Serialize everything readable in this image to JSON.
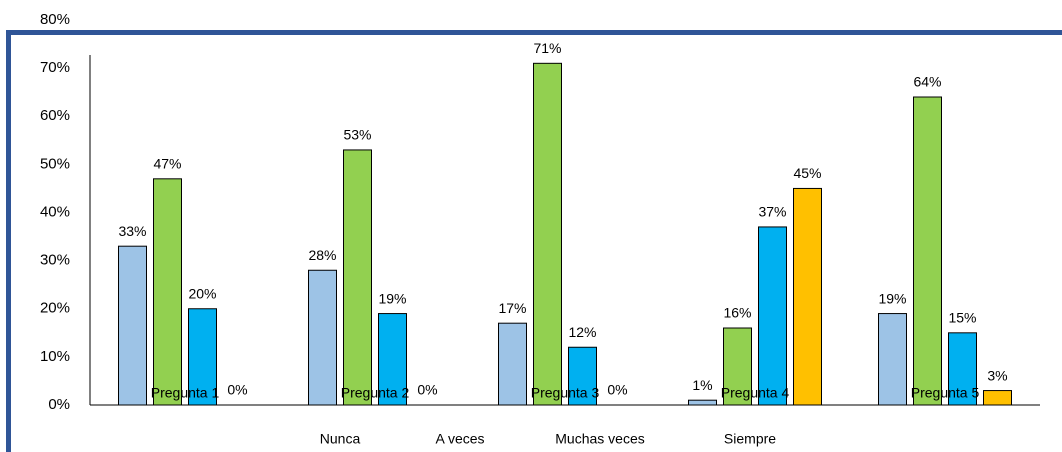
{
  "chart_data": {
    "type": "bar",
    "categories": [
      "Pregunta 1",
      "Pregunta 2",
      "Pregunta 3",
      "Pregunta 4",
      "Pregunta 5"
    ],
    "series": [
      {
        "name": "Nunca",
        "color": "#9dc3e6",
        "values": [
          33,
          28,
          17,
          1,
          19
        ],
        "value_labels": [
          "33%",
          "28%",
          "17%",
          "1%",
          "19%"
        ]
      },
      {
        "name": "A veces",
        "color": "#92d050",
        "values": [
          47,
          53,
          71,
          16,
          64
        ],
        "value_labels": [
          "47%",
          "53%",
          "71%",
          "16%",
          "64%"
        ]
      },
      {
        "name": "Muchas veces",
        "color": "#00b0f0",
        "values": [
          20,
          19,
          12,
          37,
          15
        ],
        "value_labels": [
          "20%",
          "19%",
          "12%",
          "37%",
          "15%"
        ]
      },
      {
        "name": "Siempre",
        "color": "#ffc000",
        "values": [
          0,
          0,
          0,
          45,
          3
        ],
        "value_labels": [
          "0%",
          "0%",
          "0%",
          "45%",
          "3%"
        ]
      }
    ],
    "ylim": [
      0,
      80
    ],
    "yticks": [
      {
        "value": 0,
        "label": "0%"
      },
      {
        "value": 10,
        "label": "10%"
      },
      {
        "value": 20,
        "label": "20%"
      },
      {
        "value": 30,
        "label": "30%"
      },
      {
        "value": 40,
        "label": "40%"
      },
      {
        "value": 50,
        "label": "50%"
      },
      {
        "value": 60,
        "label": "60%"
      },
      {
        "value": 70,
        "label": "70%"
      },
      {
        "value": 80,
        "label": "80%"
      }
    ],
    "grid": false
  }
}
